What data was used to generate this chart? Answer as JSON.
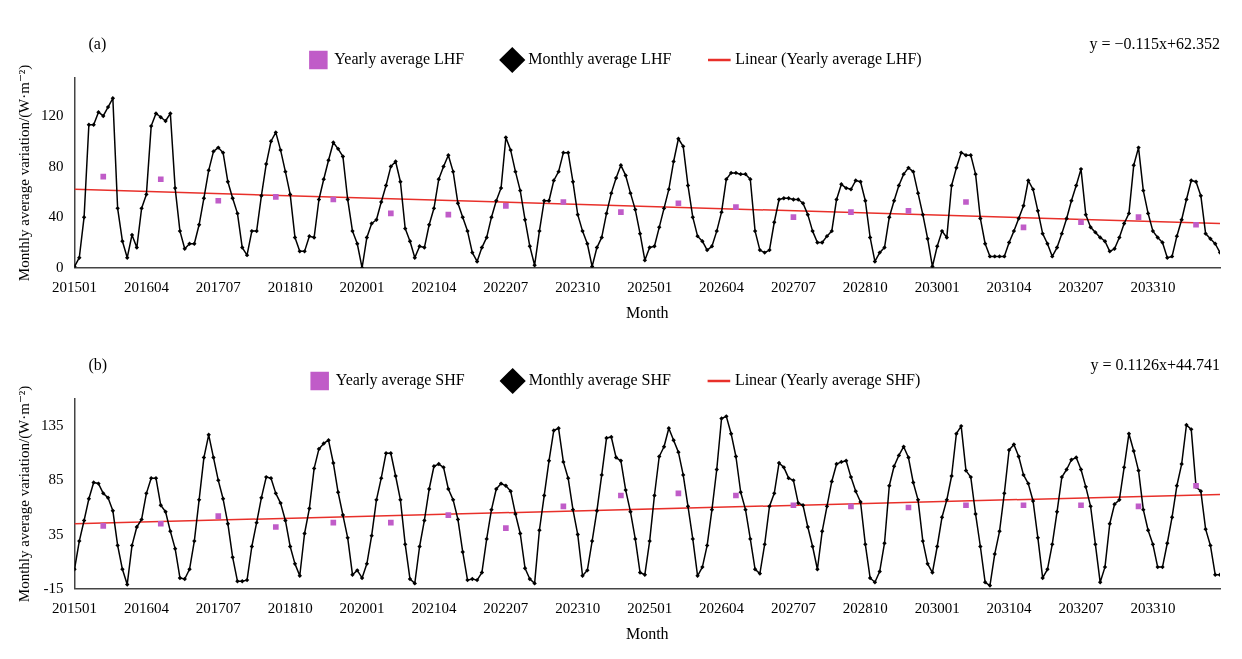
{
  "chart_data": [
    {
      "type": "line",
      "xlabel": "Month",
      "ylabel": "Monthly average variation/(W·m⁻²)",
      "legend": "top",
      "annotations": [
        "(a)",
        "y = −0.115x+62.352"
      ],
      "xlim": [
        "2015-01",
        "2034-12"
      ],
      "xticks": [
        {
          "value": "2015-01",
          "label": "201501"
        },
        {
          "value": "2016-04",
          "label": "201604"
        },
        {
          "value": "2017-07",
          "label": "201707"
        },
        {
          "value": "2018-10",
          "label": "201810"
        },
        {
          "value": "2020-01",
          "label": "202001"
        },
        {
          "value": "2021-04",
          "label": "202104"
        },
        {
          "value": "2022-07",
          "label": "202207"
        },
        {
          "value": "2023-10",
          "label": "202310"
        },
        {
          "value": "2025-01",
          "label": "202501"
        },
        {
          "value": "2026-04",
          "label": "202604"
        },
        {
          "value": "2027-07",
          "label": "202707"
        },
        {
          "value": "2028-10",
          "label": "202810"
        },
        {
          "value": "2030-01",
          "label": "203001"
        },
        {
          "value": "2031-04",
          "label": "203104"
        },
        {
          "value": "2032-07",
          "label": "203207"
        },
        {
          "value": "2033-10",
          "label": "203310"
        }
      ],
      "ylim": [
        0,
        150
      ],
      "yticks": [
        0,
        40,
        80,
        120
      ],
      "x": [
        "2015-01",
        "2015-02",
        "2015-03",
        "2015-04",
        "2015-05",
        "2015-06",
        "2015-07",
        "2015-08",
        "2015-09",
        "2015-10",
        "2015-11",
        "2015-12",
        "2016-01",
        "2016-02",
        "2016-03",
        "2016-04",
        "2016-05",
        "2016-06",
        "2016-07",
        "2016-08",
        "2016-09",
        "2016-10",
        "2016-11",
        "2016-12",
        "2017-01",
        "2017-02",
        "2017-03",
        "2017-04",
        "2017-05",
        "2017-06",
        "2017-07",
        "2017-08",
        "2017-09",
        "2017-10",
        "2017-11",
        "2017-12",
        "2018-01",
        "2018-02",
        "2018-03",
        "2018-04",
        "2018-05",
        "2018-06",
        "2018-07",
        "2018-08",
        "2018-09",
        "2018-10",
        "2018-11",
        "2018-12",
        "2019-01",
        "2019-02",
        "2019-03",
        "2019-04",
        "2019-05",
        "2019-06",
        "2019-07",
        "2019-08",
        "2019-09",
        "2019-10",
        "2019-11",
        "2019-12",
        "2020-01",
        "2020-02",
        "2020-03",
        "2020-04",
        "2020-05",
        "2020-06",
        "2020-07",
        "2020-08",
        "2020-09",
        "2020-10",
        "2020-11",
        "2020-12",
        "2021-01",
        "2021-02",
        "2021-03",
        "2021-04",
        "2021-05",
        "2021-06",
        "2021-07",
        "2021-08",
        "2021-09",
        "2021-10",
        "2021-11",
        "2021-12",
        "2022-01",
        "2022-02",
        "2022-03",
        "2022-04",
        "2022-05",
        "2022-06",
        "2022-07",
        "2022-08",
        "2022-09",
        "2022-10",
        "2022-11",
        "2022-12",
        "2023-01",
        "2023-02",
        "2023-03",
        "2023-04",
        "2023-05",
        "2023-06",
        "2023-07",
        "2023-08",
        "2023-09",
        "2023-10",
        "2023-11",
        "2023-12",
        "2024-01",
        "2024-02",
        "2024-03",
        "2024-04",
        "2024-05",
        "2024-06",
        "2024-07",
        "2024-08",
        "2024-09",
        "2024-10",
        "2024-11",
        "2024-12",
        "2025-01",
        "2025-02",
        "2025-03",
        "2025-04",
        "2025-05",
        "2025-06",
        "2025-07",
        "2025-08",
        "2025-09",
        "2025-10",
        "2025-11",
        "2025-12",
        "2026-01",
        "2026-02",
        "2026-03",
        "2026-04",
        "2026-05",
        "2026-06",
        "2026-07",
        "2026-08",
        "2026-09",
        "2026-10",
        "2026-11",
        "2026-12",
        "2027-01",
        "2027-02",
        "2027-03",
        "2027-04",
        "2027-05",
        "2027-06",
        "2027-07",
        "2027-08",
        "2027-09",
        "2027-10",
        "2027-11",
        "2027-12",
        "2028-01",
        "2028-02",
        "2028-03",
        "2028-04",
        "2028-05",
        "2028-06",
        "2028-07",
        "2028-08",
        "2028-09",
        "2028-10",
        "2028-11",
        "2028-12",
        "2029-01",
        "2029-02",
        "2029-03",
        "2029-04",
        "2029-05",
        "2029-06",
        "2029-07",
        "2029-08",
        "2029-09",
        "2029-10",
        "2029-11",
        "2029-12",
        "2030-01",
        "2030-02",
        "2030-03",
        "2030-04",
        "2030-05",
        "2030-06",
        "2030-07",
        "2030-08",
        "2030-09",
        "2030-10",
        "2030-11",
        "2030-12",
        "2031-01",
        "2031-02",
        "2031-03",
        "2031-04",
        "2031-05",
        "2031-06",
        "2031-07",
        "2031-08",
        "2031-09",
        "2031-10",
        "2031-11",
        "2031-12",
        "2032-01",
        "2032-02",
        "2032-03",
        "2032-04",
        "2032-05",
        "2032-06",
        "2032-07",
        "2032-08",
        "2032-09",
        "2032-10",
        "2032-11",
        "2032-12",
        "2033-01",
        "2033-02",
        "2033-03",
        "2033-04",
        "2033-05",
        "2033-06",
        "2033-07",
        "2033-08",
        "2033-09",
        "2033-10",
        "2033-11",
        "2033-12",
        "2034-01",
        "2034-02",
        "2034-03",
        "2034-04",
        "2034-05",
        "2034-06",
        "2034-07",
        "2034-08",
        "2034-09",
        "2034-10",
        "2034-11",
        "2034-12"
      ],
      "series": [
        {
          "name": "Monthly average LHF",
          "type": "line",
          "marker": "diamond",
          "color": "#000000",
          "values": [
            1,
            8,
            40,
            113,
            113,
            123,
            120,
            127,
            134,
            47,
            21,
            8,
            26,
            16,
            47,
            58,
            112,
            122,
            119,
            116,
            122,
            63,
            29,
            15,
            19,
            19,
            34,
            55,
            77,
            92,
            95,
            91,
            68,
            55,
            43,
            16,
            10,
            29,
            29,
            57,
            82,
            100,
            107,
            93,
            76,
            58,
            24,
            13,
            13,
            25,
            24,
            54,
            70,
            85,
            99,
            94,
            88,
            54,
            29,
            19,
            0,
            24,
            35,
            38,
            52,
            65,
            80,
            84,
            68,
            31,
            21,
            8,
            17,
            16,
            34,
            47,
            70,
            80,
            89,
            76,
            51,
            40,
            29,
            12,
            5,
            16,
            24,
            40,
            53,
            63,
            103,
            93,
            76,
            61,
            38,
            17,
            2,
            29,
            53,
            53,
            69,
            76,
            91,
            91,
            68,
            42,
            29,
            19,
            1,
            16,
            24,
            43,
            59,
            71,
            81,
            73,
            59,
            46,
            27,
            6,
            16,
            17,
            32,
            47,
            62,
            84,
            102,
            96,
            65,
            40,
            25,
            21,
            14,
            17,
            29,
            44,
            70,
            75,
            75,
            74,
            74,
            70,
            29,
            14,
            12,
            14,
            36,
            54,
            55,
            55,
            54,
            54,
            51,
            42,
            29,
            20,
            20,
            25,
            29,
            54,
            66,
            63,
            62,
            69,
            68,
            53,
            24,
            5,
            12,
            16,
            40,
            53,
            65,
            74,
            79,
            76,
            59,
            42,
            23,
            1,
            17,
            29,
            24,
            65,
            79,
            91,
            89,
            89,
            74,
            39,
            19,
            9,
            9,
            9,
            9,
            20,
            29,
            39,
            49,
            69,
            62,
            45,
            27,
            19,
            9,
            16,
            27,
            39,
            53,
            65,
            78,
            42,
            32,
            28,
            24,
            21,
            13,
            15,
            24,
            35,
            43,
            81,
            95,
            61,
            43,
            29,
            24,
            20,
            8,
            9,
            25,
            38,
            54,
            69,
            68,
            57,
            27,
            23,
            19,
            12
          ]
        },
        {
          "name": "Yearly average LHF",
          "type": "scatter",
          "marker": "square",
          "color": "#c05cc8",
          "x": [
            "2015-07",
            "2016-07",
            "2017-07",
            "2018-07",
            "2019-07",
            "2020-07",
            "2021-07",
            "2022-07",
            "2023-07",
            "2024-07",
            "2025-07",
            "2026-07",
            "2027-07",
            "2028-07",
            "2029-07",
            "2030-07",
            "2031-07",
            "2032-07",
            "2033-07",
            "2034-07"
          ],
          "values": [
            72,
            70,
            53,
            56,
            54,
            43,
            42,
            49,
            52,
            44,
            51,
            48,
            40,
            44,
            45,
            52,
            32,
            36,
            40,
            34
          ]
        },
        {
          "name": "Linear (Yearly average LHF)",
          "type": "line",
          "marker": "none",
          "color": "#e8302a",
          "x": [
            "2015-01",
            "2034-12"
          ],
          "values": [
            62,
            35
          ]
        }
      ]
    },
    {
      "type": "line",
      "xlabel": "Month",
      "ylabel": "Monthly average variation/(W·m⁻²)",
      "legend": "top",
      "annotations": [
        "(b)",
        "y = 0.1126x+44.741"
      ],
      "xlim": [
        "2015-01",
        "2034-12"
      ],
      "xticks": [
        {
          "value": "2015-01",
          "label": "201501"
        },
        {
          "value": "2016-04",
          "label": "201604"
        },
        {
          "value": "2017-07",
          "label": "201707"
        },
        {
          "value": "2018-10",
          "label": "201810"
        },
        {
          "value": "2020-01",
          "label": "202001"
        },
        {
          "value": "2021-04",
          "label": "202104"
        },
        {
          "value": "2022-07",
          "label": "202207"
        },
        {
          "value": "2023-10",
          "label": "202310"
        },
        {
          "value": "2025-01",
          "label": "202501"
        },
        {
          "value": "2026-04",
          "label": "202604"
        },
        {
          "value": "2027-07",
          "label": "202707"
        },
        {
          "value": "2028-10",
          "label": "202810"
        },
        {
          "value": "2030-01",
          "label": "203001"
        },
        {
          "value": "2031-04",
          "label": "203104"
        },
        {
          "value": "2032-07",
          "label": "203207"
        },
        {
          "value": "2033-10",
          "label": "203310"
        }
      ],
      "ylim": [
        -15,
        160
      ],
      "yticks": [
        -15,
        35,
        85,
        135
      ],
      "x": [
        "2015-01",
        "2015-02",
        "2015-03",
        "2015-04",
        "2015-05",
        "2015-06",
        "2015-07",
        "2015-08",
        "2015-09",
        "2015-10",
        "2015-11",
        "2015-12",
        "2016-01",
        "2016-02",
        "2016-03",
        "2016-04",
        "2016-05",
        "2016-06",
        "2016-07",
        "2016-08",
        "2016-09",
        "2016-10",
        "2016-11",
        "2016-12",
        "2017-01",
        "2017-02",
        "2017-03",
        "2017-04",
        "2017-05",
        "2017-06",
        "2017-07",
        "2017-08",
        "2017-09",
        "2017-10",
        "2017-11",
        "2017-12",
        "2018-01",
        "2018-02",
        "2018-03",
        "2018-04",
        "2018-05",
        "2018-06",
        "2018-07",
        "2018-08",
        "2018-09",
        "2018-10",
        "2018-11",
        "2018-12",
        "2019-01",
        "2019-02",
        "2019-03",
        "2019-04",
        "2019-05",
        "2019-06",
        "2019-07",
        "2019-08",
        "2019-09",
        "2019-10",
        "2019-11",
        "2019-12",
        "2020-01",
        "2020-02",
        "2020-03",
        "2020-04",
        "2020-05",
        "2020-06",
        "2020-07",
        "2020-08",
        "2020-09",
        "2020-10",
        "2020-11",
        "2020-12",
        "2021-01",
        "2021-02",
        "2021-03",
        "2021-04",
        "2021-05",
        "2021-06",
        "2021-07",
        "2021-08",
        "2021-09",
        "2021-10",
        "2021-11",
        "2021-12",
        "2022-01",
        "2022-02",
        "2022-03",
        "2022-04",
        "2022-05",
        "2022-06",
        "2022-07",
        "2022-08",
        "2022-09",
        "2022-10",
        "2022-11",
        "2022-12",
        "2023-01",
        "2023-02",
        "2023-03",
        "2023-04",
        "2023-05",
        "2023-06",
        "2023-07",
        "2023-08",
        "2023-09",
        "2023-10",
        "2023-11",
        "2023-12",
        "2024-01",
        "2024-02",
        "2024-03",
        "2024-04",
        "2024-05",
        "2024-06",
        "2024-07",
        "2024-08",
        "2024-09",
        "2024-10",
        "2024-11",
        "2024-12",
        "2025-01",
        "2025-02",
        "2025-03",
        "2025-04",
        "2025-05",
        "2025-06",
        "2025-07",
        "2025-08",
        "2025-09",
        "2025-10",
        "2025-11",
        "2025-12",
        "2026-01",
        "2026-02",
        "2026-03",
        "2026-04",
        "2026-05",
        "2026-06",
        "2026-07",
        "2026-08",
        "2026-09",
        "2026-10",
        "2026-11",
        "2026-12",
        "2027-01",
        "2027-02",
        "2027-03",
        "2027-04",
        "2027-05",
        "2027-06",
        "2027-07",
        "2027-08",
        "2027-09",
        "2027-10",
        "2027-11",
        "2027-12",
        "2028-01",
        "2028-02",
        "2028-03",
        "2028-04",
        "2028-05",
        "2028-06",
        "2028-07",
        "2028-08",
        "2028-09",
        "2028-10",
        "2028-11",
        "2028-12",
        "2029-01",
        "2029-02",
        "2029-03",
        "2029-04",
        "2029-05",
        "2029-06",
        "2029-07",
        "2029-08",
        "2029-09",
        "2029-10",
        "2029-11",
        "2029-12",
        "2030-01",
        "2030-02",
        "2030-03",
        "2030-04",
        "2030-05",
        "2030-06",
        "2030-07",
        "2030-08",
        "2030-09",
        "2030-10",
        "2030-11",
        "2030-12",
        "2031-01",
        "2031-02",
        "2031-03",
        "2031-04",
        "2031-05",
        "2031-06",
        "2031-07",
        "2031-08",
        "2031-09",
        "2031-10",
        "2031-11",
        "2031-12",
        "2032-01",
        "2032-02",
        "2032-03",
        "2032-04",
        "2032-05",
        "2032-06",
        "2032-07",
        "2032-08",
        "2032-09",
        "2032-10",
        "2032-11",
        "2032-12",
        "2033-01",
        "2033-02",
        "2033-03",
        "2033-04",
        "2033-05",
        "2033-06",
        "2033-07",
        "2033-08",
        "2033-09",
        "2033-10",
        "2033-11",
        "2033-12",
        "2034-01",
        "2034-02",
        "2034-03",
        "2034-04",
        "2034-05",
        "2034-06",
        "2034-07",
        "2034-08",
        "2034-09",
        "2034-10",
        "2034-11",
        "2034-12"
      ],
      "series": [
        {
          "name": "Monthly average SHF",
          "type": "line",
          "marker": "diamond",
          "color": "#000000",
          "values": [
            3,
            29,
            48,
            68,
            83,
            82,
            73,
            69,
            57,
            25,
            3,
            -11,
            25,
            42,
            49,
            73,
            87,
            87,
            62,
            56,
            38,
            22,
            -5,
            -6,
            3,
            29,
            67,
            106,
            127,
            106,
            85,
            68,
            45,
            14,
            -8,
            -8,
            -7,
            24,
            46,
            69,
            88,
            87,
            73,
            64,
            48,
            24,
            8,
            -3,
            36,
            59,
            96,
            114,
            119,
            122,
            101,
            74,
            53,
            32,
            -2,
            2,
            -5,
            8,
            34,
            67,
            87,
            110,
            110,
            89,
            67,
            26,
            -6,
            -10,
            24,
            48,
            77,
            98,
            100,
            97,
            77,
            67,
            49,
            19,
            -7,
            -6,
            -7,
            0,
            31,
            58,
            77,
            82,
            80,
            75,
            54,
            36,
            4,
            -6,
            -10,
            39,
            71,
            103,
            131,
            133,
            102,
            87,
            58,
            35,
            -3,
            2,
            29,
            57,
            90,
            124,
            125,
            106,
            103,
            76,
            56,
            31,
            0,
            -2,
            29,
            71,
            107,
            116,
            133,
            122,
            111,
            90,
            61,
            31,
            -3,
            5,
            25,
            58,
            95,
            142,
            144,
            128,
            107,
            74,
            58,
            31,
            3,
            -1,
            26,
            61,
            73,
            101,
            97,
            87,
            85,
            64,
            62,
            42,
            24,
            3,
            38,
            61,
            84,
            100,
            102,
            103,
            88,
            75,
            65,
            26,
            -5,
            -9,
            1,
            27,
            80,
            98,
            108,
            116,
            106,
            83,
            67,
            29,
            8,
            0,
            24,
            51,
            67,
            89,
            128,
            135,
            94,
            88,
            54,
            24,
            -9,
            -12,
            17,
            38,
            73,
            113,
            118,
            107,
            90,
            82,
            66,
            32,
            -5,
            3,
            26,
            56,
            88,
            95,
            104,
            106,
            95,
            79,
            61,
            26,
            -9,
            5,
            45,
            63,
            67,
            97,
            128,
            112,
            94,
            58,
            39,
            26,
            5,
            5,
            27,
            51,
            80,
            100,
            136,
            132,
            79,
            75,
            40,
            25,
            -2,
            -2
          ]
        },
        {
          "name": "Yearly average SHF",
          "type": "scatter",
          "marker": "square",
          "color": "#c05cc8",
          "x": [
            "2015-07",
            "2016-07",
            "2017-07",
            "2018-07",
            "2019-07",
            "2020-07",
            "2021-07",
            "2022-07",
            "2023-07",
            "2024-07",
            "2025-07",
            "2026-07",
            "2027-07",
            "2028-07",
            "2029-07",
            "2030-07",
            "2031-07",
            "2032-07",
            "2033-07",
            "2034-07"
          ],
          "values": [
            43,
            45,
            52,
            42,
            46,
            46,
            53,
            41,
            61,
            71,
            73,
            71,
            62,
            61,
            60,
            62,
            62,
            62,
            61,
            80
          ]
        },
        {
          "name": "Linear (Yearly average SHF)",
          "type": "line",
          "marker": "none",
          "color": "#e8302a",
          "x": [
            "2015-01",
            "2034-12"
          ],
          "values": [
            45,
            72
          ]
        }
      ]
    }
  ]
}
